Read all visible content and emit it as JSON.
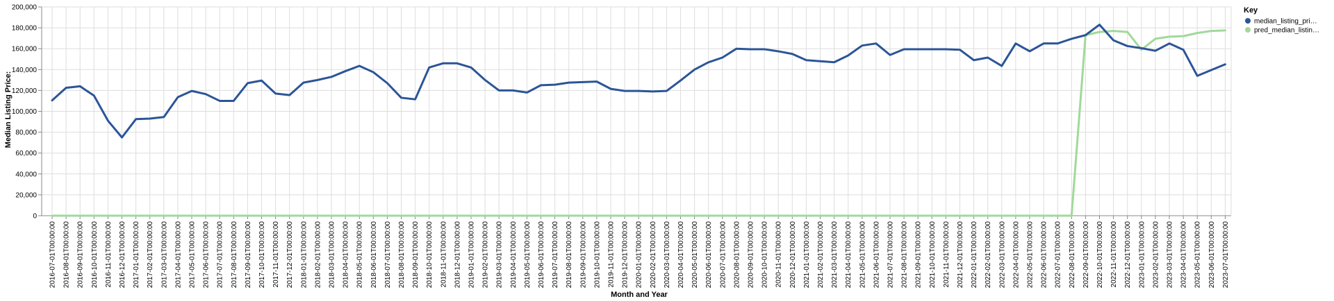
{
  "chart_data": {
    "type": "line",
    "xlabel": "Month and Year",
    "ylabel": "Median Listing Price:",
    "ylim": [
      0,
      200000
    ],
    "y_ticks": [
      "0",
      "20,000",
      "40,000",
      "60,000",
      "80,000",
      "100,000",
      "120,000",
      "140,000",
      "160,000",
      "180,000",
      "200,000"
    ],
    "grid": true,
    "legend": {
      "title": "Key",
      "placement": "top-right"
    },
    "categories": [
      "2016-07-01T00:00:00",
      "2016-08-01T00:00:00",
      "2016-09-01T00:00:00",
      "2016-10-01T00:00:00",
      "2016-11-01T00:00:00",
      "2016-12-01T00:00:00",
      "2017-01-01T00:00:00",
      "2017-02-01T00:00:00",
      "2017-03-01T00:00:00",
      "2017-04-01T00:00:00",
      "2017-05-01T00:00:00",
      "2017-06-01T00:00:00",
      "2017-07-01T00:00:00",
      "2017-08-01T00:00:00",
      "2017-09-01T00:00:00",
      "2017-10-01T00:00:00",
      "2017-11-01T00:00:00",
      "2017-12-01T00:00:00",
      "2018-01-01T00:00:00",
      "2018-02-01T00:00:00",
      "2018-03-01T00:00:00",
      "2018-04-01T00:00:00",
      "2018-05-01T00:00:00",
      "2018-06-01T00:00:00",
      "2018-07-01T00:00:00",
      "2018-08-01T00:00:00",
      "2018-09-01T00:00:00",
      "2018-10-01T00:00:00",
      "2018-11-01T00:00:00",
      "2018-12-01T00:00:00",
      "2019-01-01T00:00:00",
      "2019-02-01T00:00:00",
      "2019-03-01T00:00:00",
      "2019-04-01T00:00:00",
      "2019-05-01T00:00:00",
      "2019-06-01T00:00:00",
      "2019-07-01T00:00:00",
      "2019-08-01T00:00:00",
      "2019-09-01T00:00:00",
      "2019-10-01T00:00:00",
      "2019-11-01T00:00:00",
      "2019-12-01T00:00:00",
      "2020-01-01T00:00:00",
      "2020-02-01T00:00:00",
      "2020-03-01T00:00:00",
      "2020-04-01T00:00:00",
      "2020-05-01T00:00:00",
      "2020-06-01T00:00:00",
      "2020-07-01T00:00:00",
      "2020-08-01T00:00:00",
      "2020-09-01T00:00:00",
      "2020-10-01T00:00:00",
      "2020-11-01T00:00:00",
      "2020-12-01T00:00:00",
      "2021-01-01T00:00:00",
      "2021-02-01T00:00:00",
      "2021-03-01T00:00:00",
      "2021-04-01T00:00:00",
      "2021-05-01T00:00:00",
      "2021-06-01T00:00:00",
      "2021-07-01T00:00:00",
      "2021-08-01T00:00:00",
      "2021-09-01T00:00:00",
      "2021-10-01T00:00:00",
      "2021-11-01T00:00:00",
      "2021-12-01T00:00:00",
      "2022-01-01T00:00:00",
      "2022-02-01T00:00:00",
      "2022-03-01T00:00:00",
      "2022-04-01T00:00:00",
      "2022-05-01T00:00:00",
      "2022-06-01T00:00:00",
      "2022-07-01T00:00:00",
      "2022-08-01T00:00:00",
      "2022-09-01T00:00:00",
      "2022-10-01T00:00:00",
      "2022-11-01T00:00:00",
      "2022-12-01T00:00:00",
      "2023-01-01T00:00:00",
      "2023-02-01T00:00:00",
      "2023-03-01T00:00:00",
      "2023-04-01T00:00:00",
      "2023-05-01T00:00:00",
      "2023-06-01T00:00:00",
      "2023-07-01T00:00:00"
    ],
    "series": [
      {
        "name": "median_listing_pri…",
        "color": "#2b5597",
        "values": [
          110500,
          122500,
          124000,
          115000,
          91000,
          75000,
          92500,
          93000,
          94500,
          113500,
          119500,
          116500,
          110000,
          110000,
          127000,
          129500,
          117000,
          115500,
          127500,
          130000,
          133000,
          138500,
          143500,
          137500,
          127000,
          113000,
          111500,
          142000,
          146000,
          146000,
          142000,
          130000,
          120000,
          120000,
          118000,
          125000,
          125500,
          127500,
          128000,
          128500,
          121500,
          119500,
          119500,
          119000,
          119500,
          129500,
          140000,
          147000,
          151500,
          160000,
          159500,
          159500,
          157500,
          155000,
          149000,
          148000,
          147000,
          153500,
          163000,
          165000,
          154000,
          159500,
          159500,
          159500,
          159500,
          159000,
          149000,
          151500,
          143500,
          165000,
          157500,
          165000,
          165000,
          169500,
          173000,
          183000,
          168000,
          162500,
          160500,
          158000,
          165000,
          159000,
          134000,
          139500,
          145000
        ]
      },
      {
        "name": "pred_median_listin…",
        "color": "#a0d99a",
        "values": [
          0,
          0,
          0,
          0,
          0,
          0,
          0,
          0,
          0,
          0,
          0,
          0,
          0,
          0,
          0,
          0,
          0,
          0,
          0,
          0,
          0,
          0,
          0,
          0,
          0,
          0,
          0,
          0,
          0,
          0,
          0,
          0,
          0,
          0,
          0,
          0,
          0,
          0,
          0,
          0,
          0,
          0,
          0,
          0,
          0,
          0,
          0,
          0,
          0,
          0,
          0,
          0,
          0,
          0,
          0,
          0,
          0,
          0,
          0,
          0,
          0,
          0,
          0,
          0,
          0,
          0,
          0,
          0,
          0,
          0,
          0,
          0,
          0,
          0,
          173000,
          176000,
          177000,
          176000,
          159000,
          169500,
          171500,
          172000,
          175000,
          177000,
          177500
        ]
      }
    ]
  }
}
